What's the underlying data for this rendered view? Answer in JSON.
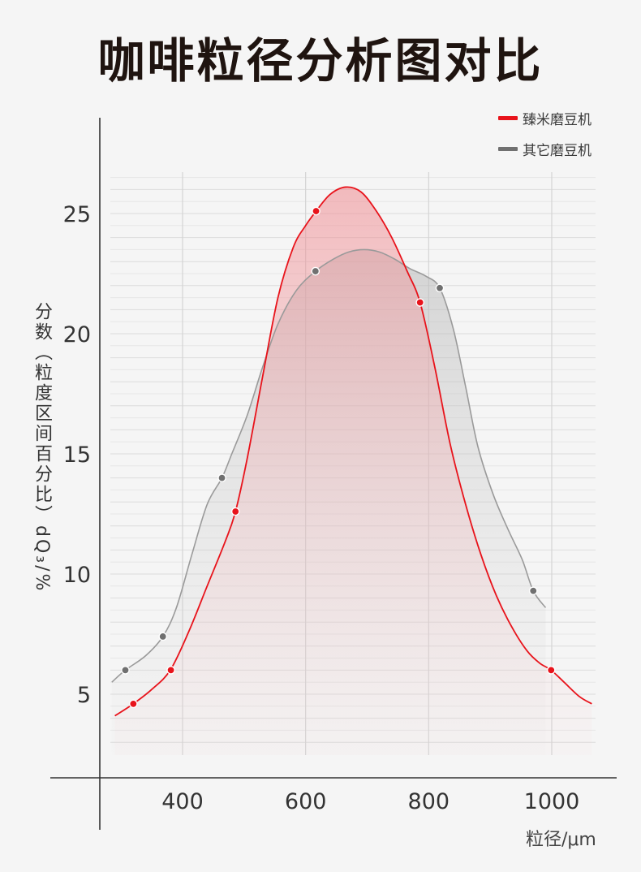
{
  "title": "咖啡粒径分析图对比",
  "chart_data": {
    "type": "line",
    "xlabel": "粒径/μm",
    "ylabel": "分数（粒度区间百分比）dQ₃/%",
    "xticks": [
      400,
      600,
      800,
      1000
    ],
    "yticks": [
      5,
      10,
      15,
      20,
      25
    ],
    "xlim": [
      270,
      1070
    ],
    "ylim": [
      2,
      28
    ],
    "grid": "on",
    "legend_position": "top-right",
    "series": [
      {
        "name": "臻米磨豆机",
        "color": "#e8131b",
        "curve": [
          [
            290,
            4.1
          ],
          [
            320,
            4.6
          ],
          [
            350,
            5.2
          ],
          [
            380,
            6.0
          ],
          [
            410,
            7.6
          ],
          [
            440,
            9.5
          ],
          [
            470,
            11.4
          ],
          [
            486,
            12.6
          ],
          [
            505,
            14.8
          ],
          [
            530,
            18.2
          ],
          [
            555,
            21.5
          ],
          [
            580,
            23.6
          ],
          [
            600,
            24.5
          ],
          [
            617,
            25.1
          ],
          [
            640,
            25.8
          ],
          [
            665,
            26.1
          ],
          [
            690,
            25.9
          ],
          [
            715,
            25.1
          ],
          [
            740,
            24.0
          ],
          [
            765,
            22.6
          ],
          [
            786,
            21.3
          ],
          [
            810,
            18.6
          ],
          [
            835,
            15.4
          ],
          [
            860,
            12.9
          ],
          [
            885,
            10.8
          ],
          [
            910,
            9.1
          ],
          [
            935,
            7.8
          ],
          [
            960,
            6.8
          ],
          [
            980,
            6.3
          ],
          [
            999,
            6.0
          ],
          [
            1020,
            5.5
          ],
          [
            1045,
            4.9
          ],
          [
            1065,
            4.6
          ]
        ],
        "markers": [
          [
            320,
            4.6
          ],
          [
            381,
            6.0
          ],
          [
            486,
            12.6
          ],
          [
            617,
            25.1
          ],
          [
            786,
            21.3
          ],
          [
            999,
            6.0
          ]
        ]
      },
      {
        "name": "其它磨豆机",
        "color": "#707070",
        "curve": [
          [
            285,
            5.5
          ],
          [
            307,
            6.0
          ],
          [
            340,
            6.6
          ],
          [
            368,
            7.4
          ],
          [
            390,
            8.6
          ],
          [
            415,
            10.8
          ],
          [
            440,
            12.9
          ],
          [
            464,
            14.0
          ],
          [
            480,
            15.0
          ],
          [
            505,
            16.6
          ],
          [
            530,
            18.6
          ],
          [
            555,
            20.4
          ],
          [
            585,
            21.8
          ],
          [
            616,
            22.6
          ],
          [
            645,
            23.1
          ],
          [
            670,
            23.4
          ],
          [
            695,
            23.5
          ],
          [
            720,
            23.4
          ],
          [
            745,
            23.1
          ],
          [
            770,
            22.7
          ],
          [
            795,
            22.4
          ],
          [
            818,
            21.9
          ],
          [
            840,
            20.2
          ],
          [
            860,
            17.8
          ],
          [
            880,
            15.3
          ],
          [
            905,
            13.3
          ],
          [
            930,
            11.8
          ],
          [
            952,
            10.6
          ],
          [
            970,
            9.3
          ],
          [
            990,
            8.6
          ]
        ],
        "markers": [
          [
            307,
            6.0
          ],
          [
            368,
            7.4
          ],
          [
            464,
            14.0
          ],
          [
            616,
            22.6
          ],
          [
            818,
            21.9
          ],
          [
            970,
            9.3
          ]
        ]
      }
    ]
  }
}
